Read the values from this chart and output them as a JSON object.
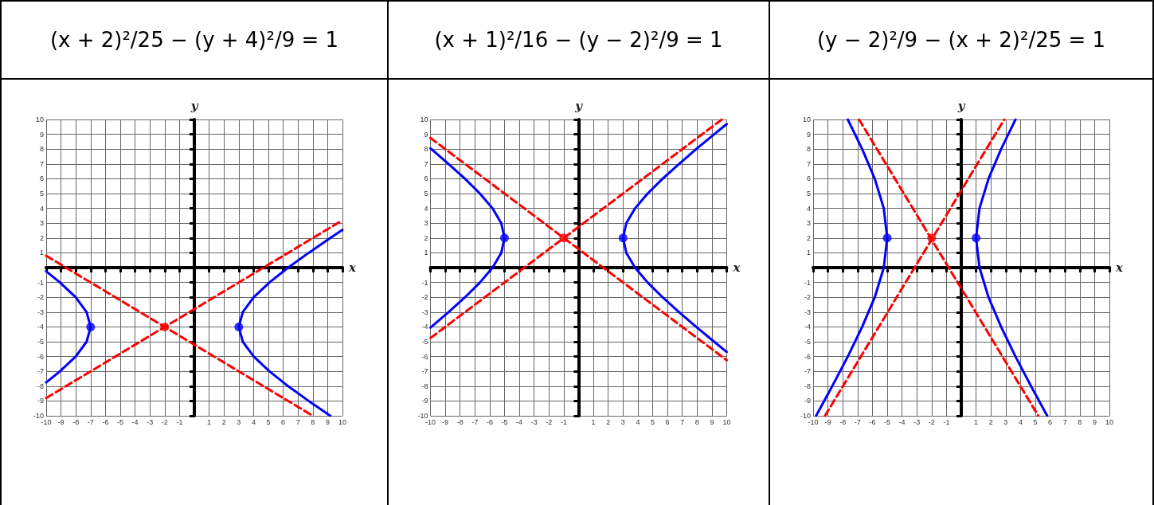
{
  "chart_data": [
    {
      "type": "line",
      "title": "(x + 2)²/25 − (y + 4)²/9 = 1",
      "xlabel": "x",
      "ylabel": "y",
      "xlim": [
        -10,
        10
      ],
      "ylim": [
        -10,
        10
      ],
      "xticks": [
        -10,
        -9,
        -8,
        -7,
        -6,
        -5,
        -4,
        -3,
        -2,
        -1,
        1,
        2,
        3,
        4,
        5,
        6,
        7,
        8,
        9,
        10
      ],
      "yticks": [
        -10,
        -9,
        -8,
        -7,
        -6,
        -5,
        -4,
        -3,
        -2,
        -1,
        1,
        2,
        3,
        4,
        5,
        6,
        7,
        8,
        9,
        10
      ],
      "grid": true,
      "marker": "none",
      "line_style": "solid",
      "series": [
        {
          "color": "#0000ff",
          "x": [
            9.18,
            7.72,
            6.33,
            5.07,
            4.01,
            3.27,
            3,
            3.27,
            4.01,
            5.07,
            6.33,
            7.72,
            9.18,
            10
          ],
          "values": [
            -10,
            -9,
            -8,
            -7,
            -6,
            -5,
            -4,
            -3,
            -2,
            -1,
            0,
            1,
            2,
            2.55
          ]
        },
        {
          "color": "#0000ff",
          "x": [
            -10,
            -9.07,
            -8.01,
            -7.27,
            -7,
            -7.27,
            -8.01,
            -9.07,
            -10
          ],
          "values": [
            -7.75,
            -7,
            -6,
            -5,
            -4,
            -3,
            -2,
            -1,
            -0.25
          ]
        },
        {
          "color": "#ff0000",
          "line_style": "dashed",
          "x": [
            -10,
            10
          ],
          "values": [
            -8.8,
            3.2
          ]
        },
        {
          "color": "#ff0000",
          "line_style": "dashed",
          "x": [
            -10,
            8
          ],
          "values": [
            0.8,
            -10
          ]
        },
        {
          "type": "scatter",
          "marker": "circle",
          "color": "#0000ff",
          "x": [
            -7,
            3
          ],
          "values": [
            -4,
            -4
          ]
        },
        {
          "type": "scatter",
          "marker": "circle",
          "color": "#ff0000",
          "x": [
            -2
          ],
          "values": [
            -4
          ]
        }
      ]
    },
    {
      "type": "line",
      "title": "(x + 1)²/16 − (y − 2)²/9 = 1",
      "xlabel": "x",
      "ylabel": "y",
      "xlim": [
        -10,
        10
      ],
      "ylim": [
        -10,
        10
      ],
      "xticks": [
        -10,
        -9,
        -8,
        -7,
        -6,
        -5,
        -4,
        -3,
        -2,
        -1,
        1,
        2,
        3,
        4,
        5,
        6,
        7,
        8,
        9,
        10
      ],
      "yticks": [
        -10,
        -9,
        -8,
        -7,
        -6,
        -5,
        -4,
        -3,
        -2,
        -1,
        1,
        2,
        3,
        4,
        5,
        6,
        7,
        8,
        9,
        10
      ],
      "grid": true,
      "marker": "none",
      "line_style": "solid",
      "series": [
        {
          "color": "#0000ff",
          "x": [
            10,
            9.15,
            7.94,
            6.78,
            5.67,
            4.66,
            3.81,
            3.22,
            3,
            3.22,
            3.81,
            4.66,
            5.67,
            6.78,
            7.94,
            9.15,
            10
          ],
          "values": [
            -5.69,
            -5,
            -4,
            -3,
            -2,
            -1,
            0,
            1,
            2,
            3,
            4,
            5,
            6,
            7,
            8,
            9,
            9.69
          ]
        },
        {
          "color": "#0000ff",
          "x": [
            -10,
            -9.94,
            -8.78,
            -7.67,
            -6.66,
            -5.81,
            -5.22,
            -5,
            -5.22,
            -5.81,
            -6.66,
            -7.67,
            -8.78,
            -9.94,
            -10
          ],
          "values": [
            -4.05,
            -4,
            -3,
            -2,
            -1,
            0,
            1,
            2,
            3,
            4,
            5,
            6,
            7,
            8,
            8.05
          ]
        },
        {
          "color": "#ff0000",
          "line_style": "dashed",
          "x": [
            -10,
            9.67
          ],
          "values": [
            -4.75,
            10
          ]
        },
        {
          "color": "#ff0000",
          "line_style": "dashed",
          "x": [
            -10,
            10
          ],
          "values": [
            8.75,
            -6.25
          ]
        },
        {
          "type": "scatter",
          "marker": "circle",
          "color": "#0000ff",
          "x": [
            -5,
            3
          ],
          "values": [
            2,
            2
          ]
        },
        {
          "type": "scatter",
          "marker": "circle",
          "color": "#ff0000",
          "x": [
            -1
          ],
          "values": [
            2
          ]
        }
      ]
    },
    {
      "type": "line",
      "title": "(y − 2)²/9 − (x + 2)²/25 = 1",
      "xlabel": "x",
      "ylabel": "y",
      "xlim": [
        -10,
        10
      ],
      "ylim": [
        -10,
        10
      ],
      "xticks": [
        -10,
        -9,
        -8,
        -7,
        -6,
        -5,
        -4,
        -3,
        -2,
        -1,
        1,
        2,
        3,
        4,
        5,
        6,
        7,
        8,
        9,
        10
      ],
      "yticks": [
        -10,
        -9,
        -8,
        -7,
        -6,
        -5,
        -4,
        -3,
        -2,
        -1,
        1,
        2,
        3,
        4,
        5,
        6,
        7,
        8,
        9,
        10
      ],
      "grid": true,
      "marker": "none",
      "line_style": "solid",
      "series": [
        {
          "color": "#0000ff",
          "x": [
            5.8,
            4.71,
            3.66,
            2.69,
            1.84,
            1.23,
            1,
            1.23,
            1.84,
            2.69,
            3.66
          ],
          "values": [
            -10,
            -8,
            -6,
            -4,
            -2,
            0,
            2,
            4,
            6,
            8,
            10
          ]
        },
        {
          "color": "#0000ff",
          "x": [
            -9.8,
            -8.71,
            -7.66,
            -6.69,
            -5.84,
            -5.23,
            -5,
            -5.23,
            -5.84,
            -6.69,
            -7.66
          ],
          "values": [
            -10,
            -8,
            -6,
            -4,
            -2,
            0,
            2,
            4,
            6,
            8,
            10
          ]
        },
        {
          "color": "#ff0000",
          "line_style": "dashed",
          "x": [
            -9.2,
            2.9
          ],
          "values": [
            -10,
            10
          ]
        },
        {
          "color": "#ff0000",
          "line_style": "dashed",
          "x": [
            -6.9,
            5.2
          ],
          "values": [
            10,
            -10
          ]
        },
        {
          "type": "scatter",
          "marker": "circle",
          "color": "#0000ff",
          "x": [
            -5,
            1
          ],
          "values": [
            2,
            2
          ]
        },
        {
          "type": "scatter",
          "marker": "circle",
          "color": "#ff0000",
          "x": [
            -2
          ],
          "values": [
            2
          ]
        }
      ]
    }
  ]
}
